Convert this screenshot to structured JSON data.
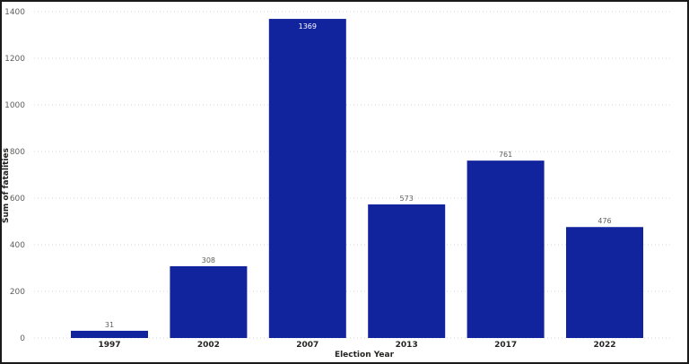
{
  "chart_data": {
    "type": "bar",
    "categories": [
      "1997",
      "2002",
      "2007",
      "2013",
      "2017",
      "2022"
    ],
    "values": [
      31,
      308,
      1369,
      573,
      761,
      476
    ],
    "value_labels": [
      "31",
      "308",
      "1369",
      "573",
      "761",
      "476"
    ],
    "title": "",
    "xlabel": "Election Year",
    "ylabel": "Sum of fatalities",
    "ylim": [
      0,
      1400
    ],
    "y_ticks": [
      0,
      200,
      400,
      600,
      800,
      1000,
      1200,
      1400
    ],
    "y_tick_labels": [
      "0",
      "200",
      "400",
      "600",
      "800",
      "1000",
      "1200",
      "1400"
    ],
    "grid": true,
    "legend": "none",
    "colors": {
      "bar": "#12239E",
      "label_outside": "#605e5c",
      "label_inside": "#ffffff"
    }
  }
}
